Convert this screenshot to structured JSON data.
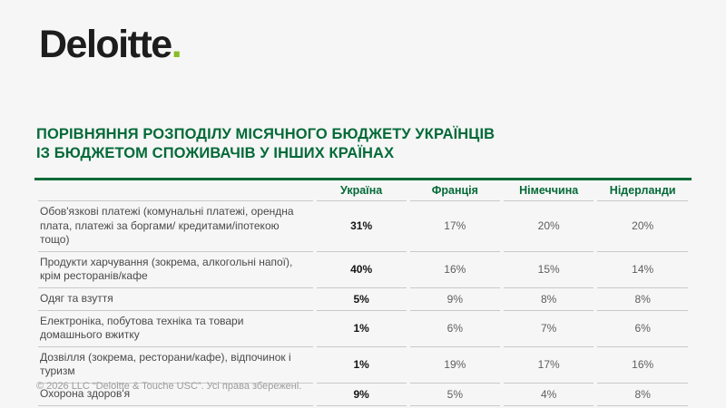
{
  "brand": {
    "name": "Deloitte",
    "dot": ".",
    "dot_color": "#86BC25",
    "accent_green": "#046A38"
  },
  "title": {
    "line1": "ПОРІВНЯННЯ РОЗПОДІЛУ МІСЯЧНОГО БЮДЖЕТУ УКРАЇНЦІВ",
    "line2": "ІЗ БЮДЖЕТОМ СПОЖИВАЧІВ У ІНШИХ КРАЇНАХ"
  },
  "table": {
    "columns": [
      "Україна",
      "Франція",
      "Німеччина",
      "Нідерланди"
    ],
    "rows": [
      {
        "category": "Обов'язкові платежі (комунальні платежі, орендна плата, платежі за боргами/ кредитами/іпотекою тощо)",
        "values": [
          "31%",
          "17%",
          "20%",
          "20%"
        ]
      },
      {
        "category": "Продукти харчування (зокрема, алкогольні напої), крім ресторанів/кафе",
        "values": [
          "40%",
          "16%",
          "15%",
          "14%"
        ]
      },
      {
        "category": "Одяг та взуття",
        "values": [
          "5%",
          "9%",
          "8%",
          "8%"
        ]
      },
      {
        "category": "Електроніка, побутова техніка та товари домашнього вжитку",
        "values": [
          "1%",
          "6%",
          "7%",
          "6%"
        ]
      },
      {
        "category": "Дозвілля (зокрема, ресторани/кафе), відпочинок і туризм",
        "values": [
          "1%",
          "19%",
          "17%",
          "16%"
        ]
      },
      {
        "category": "Охорона здоров'я",
        "values": [
          "9%",
          "5%",
          "4%",
          "8%"
        ]
      }
    ]
  },
  "footer": {
    "copyright": "© 2026 LLC “Deloitte & Touche USC”. Усі права збережені."
  },
  "chart_data": {
    "type": "table",
    "title": "ПОРІВНЯННЯ РОЗПОДІЛУ МІСЯЧНОГО БЮДЖЕТУ УКРАЇНЦІВ ІЗ БЮДЖЕТОМ СПОЖИВАЧІВ У ІНШИХ КРАЇНАХ",
    "unit": "%",
    "categories": [
      "Обов'язкові платежі (комунальні платежі, орендна плата, платежі за боргами/ кредитами/іпотекою тощо)",
      "Продукти харчування (зокрема, алкогольні напої), крім ресторанів/кафе",
      "Одяг та взуття",
      "Електроніка, побутова техніка та товари домашнього вжитку",
      "Дозвілля (зокрема, ресторани/кафе), відпочинок і туризм",
      "Охорона здоров'я"
    ],
    "series": [
      {
        "name": "Україна",
        "values": [
          31,
          40,
          5,
          1,
          1,
          9
        ]
      },
      {
        "name": "Франція",
        "values": [
          17,
          16,
          9,
          6,
          19,
          5
        ]
      },
      {
        "name": "Німеччина",
        "values": [
          20,
          15,
          8,
          7,
          17,
          4
        ]
      },
      {
        "name": "Нідерланди",
        "values": [
          20,
          14,
          8,
          6,
          16,
          8
        ]
      }
    ],
    "notes": "Ukraine column emphasized in bold"
  }
}
